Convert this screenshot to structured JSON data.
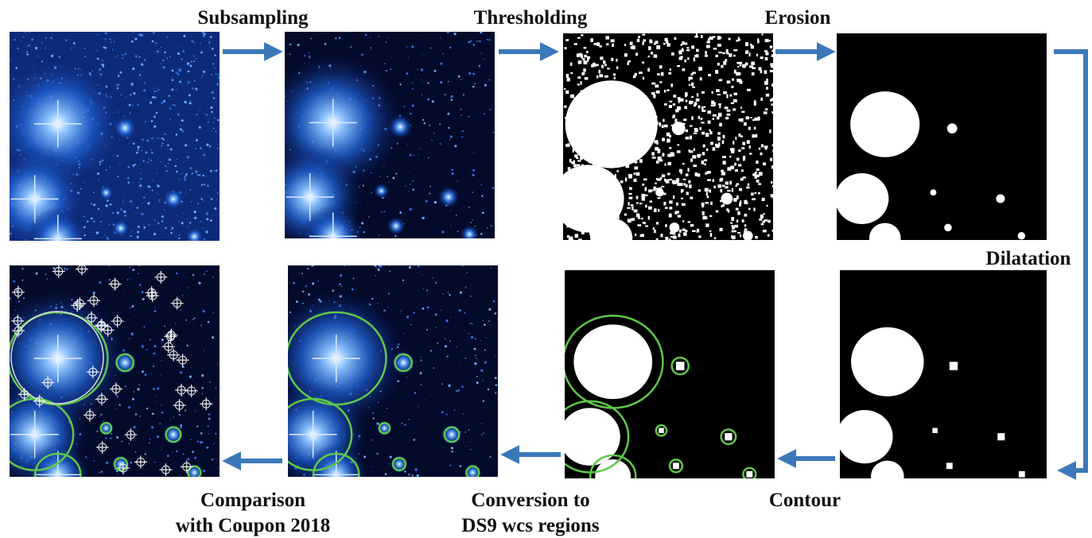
{
  "steps": [
    {
      "lines": [
        "Subsampling"
      ]
    },
    {
      "lines": [
        "Thresholding"
      ]
    },
    {
      "lines": [
        "Erosion"
      ]
    },
    {
      "lines": [
        "Dilatation"
      ]
    },
    {
      "lines": [
        "Contour"
      ]
    },
    {
      "lines": [
        "Conversion to",
        "DS9 wcs regions"
      ]
    },
    {
      "lines": [
        "Comparison",
        "with Coupon 2018"
      ]
    }
  ]
}
